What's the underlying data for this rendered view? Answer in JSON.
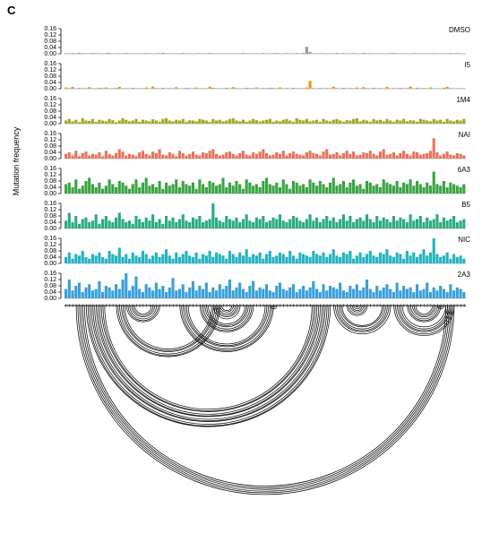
{
  "figure": {
    "panel_label": "C",
    "ylabel": "Mutation frequency"
  },
  "chart_data": {
    "type": "bar",
    "ylabel": "Mutation frequency",
    "ylim": [
      0,
      0.16
    ],
    "yticks": [
      "0.16",
      "0.12",
      "0.08",
      "0.04",
      "0.00"
    ],
    "x": {
      "count": 120,
      "start": 1,
      "step": 1
    },
    "base_color": "#9a9a9a",
    "series": [
      {
        "name": "DMSO",
        "color": "#9a9a9a",
        "values": [
          0.004,
          0.003,
          0.005,
          0.002,
          0.006,
          0.004,
          0.002,
          0.003,
          0.005,
          0.004,
          0.003,
          0.002,
          0.004,
          0.006,
          0.003,
          0.002,
          0.004,
          0.003,
          0.005,
          0.002,
          0.003,
          0.004,
          0.002,
          0.003,
          0.005,
          0.004,
          0.002,
          0.003,
          0.004,
          0.006,
          0.003,
          0.002,
          0.004,
          0.003,
          0.002,
          0.005,
          0.003,
          0.004,
          0.002,
          0.003,
          0.004,
          0.003,
          0.002,
          0.005,
          0.003,
          0.004,
          0.002,
          0.003,
          0.004,
          0.003,
          0.002,
          0.004,
          0.003,
          0.005,
          0.002,
          0.003,
          0.004,
          0.003,
          0.002,
          0.004,
          0.003,
          0.002,
          0.004,
          0.005,
          0.003,
          0.002,
          0.004,
          0.003,
          0.002,
          0.004,
          0.003,
          0.005,
          0.045,
          0.012,
          0.003,
          0.002,
          0.004,
          0.003,
          0.002,
          0.004,
          0.003,
          0.005,
          0.002,
          0.004,
          0.003,
          0.002,
          0.004,
          0.003,
          0.002,
          0.005,
          0.003,
          0.004,
          0.002,
          0.003,
          0.004,
          0.003,
          0.002,
          0.004,
          0.005,
          0.003,
          0.002,
          0.004,
          0.003,
          0.002,
          0.004,
          0.003,
          0.002,
          0.004,
          0.003,
          0.002,
          0.004,
          0.003,
          0.002,
          0.004,
          0.003,
          0.005,
          0.002,
          0.004,
          0.003,
          0.002
        ]
      },
      {
        "name": "I5",
        "color": "#e69a1e",
        "values": [
          0.008,
          0.004,
          0.012,
          0.003,
          0.006,
          0.002,
          0.004,
          0.01,
          0.003,
          0.002,
          0.006,
          0.004,
          0.008,
          0.003,
          0.002,
          0.005,
          0.012,
          0.003,
          0.004,
          0.002,
          0.006,
          0.003,
          0.004,
          0.002,
          0.008,
          0.003,
          0.014,
          0.004,
          0.002,
          0.006,
          0.003,
          0.004,
          0.002,
          0.01,
          0.003,
          0.002,
          0.006,
          0.004,
          0.003,
          0.008,
          0.002,
          0.004,
          0.003,
          0.012,
          0.006,
          0.003,
          0.004,
          0.002,
          0.006,
          0.003,
          0.01,
          0.004,
          0.002,
          0.003,
          0.006,
          0.004,
          0.003,
          0.008,
          0.002,
          0.004,
          0.003,
          0.006,
          0.004,
          0.002,
          0.008,
          0.003,
          0.004,
          0.002,
          0.006,
          0.003,
          0.004,
          0.002,
          0.008,
          0.05,
          0.004,
          0.003,
          0.006,
          0.002,
          0.004,
          0.003,
          0.012,
          0.004,
          0.002,
          0.006,
          0.003,
          0.004,
          0.002,
          0.008,
          0.003,
          0.01,
          0.004,
          0.002,
          0.006,
          0.003,
          0.004,
          0.002,
          0.012,
          0.003,
          0.004,
          0.002,
          0.006,
          0.003,
          0.004,
          0.014,
          0.002,
          0.006,
          0.003,
          0.004,
          0.002,
          0.008,
          0.003,
          0.004,
          0.002,
          0.006,
          0.012,
          0.004,
          0.003,
          0.002,
          0.004,
          0.003
        ]
      },
      {
        "name": "1M4",
        "color": "#a4a822",
        "values": [
          0.02,
          0.03,
          0.015,
          0.025,
          0.01,
          0.035,
          0.02,
          0.018,
          0.03,
          0.012,
          0.025,
          0.02,
          0.015,
          0.03,
          0.022,
          0.01,
          0.02,
          0.035,
          0.025,
          0.015,
          0.02,
          0.03,
          0.012,
          0.025,
          0.02,
          0.015,
          0.028,
          0.02,
          0.012,
          0.03,
          0.035,
          0.02,
          0.015,
          0.025,
          0.02,
          0.03,
          0.012,
          0.022,
          0.02,
          0.015,
          0.03,
          0.025,
          0.02,
          0.012,
          0.03,
          0.02,
          0.025,
          0.015,
          0.02,
          0.03,
          0.035,
          0.02,
          0.015,
          0.025,
          0.012,
          0.02,
          0.03,
          0.022,
          0.015,
          0.02,
          0.025,
          0.03,
          0.012,
          0.02,
          0.015,
          0.025,
          0.03,
          0.02,
          0.012,
          0.035,
          0.025,
          0.02,
          0.03,
          0.015,
          0.02,
          0.025,
          0.012,
          0.03,
          0.02,
          0.015,
          0.025,
          0.03,
          0.02,
          0.012,
          0.022,
          0.02,
          0.03,
          0.035,
          0.015,
          0.025,
          0.02,
          0.012,
          0.03,
          0.02,
          0.025,
          0.015,
          0.03,
          0.02,
          0.012,
          0.025,
          0.02,
          0.03,
          0.015,
          0.022,
          0.02,
          0.012,
          0.03,
          0.025,
          0.02,
          0.015,
          0.03,
          0.02,
          0.025,
          0.012,
          0.03,
          0.02,
          0.015,
          0.025,
          0.02,
          0.03
        ]
      },
      {
        "name": "NAI",
        "color": "#e8735e",
        "values": [
          0.03,
          0.04,
          0.02,
          0.05,
          0.015,
          0.035,
          0.045,
          0.02,
          0.03,
          0.025,
          0.04,
          0.015,
          0.05,
          0.03,
          0.02,
          0.035,
          0.06,
          0.045,
          0.02,
          0.03,
          0.025,
          0.015,
          0.04,
          0.05,
          0.03,
          0.02,
          0.045,
          0.035,
          0.06,
          0.025,
          0.02,
          0.04,
          0.03,
          0.015,
          0.05,
          0.035,
          0.02,
          0.03,
          0.045,
          0.025,
          0.02,
          0.04,
          0.035,
          0.05,
          0.06,
          0.03,
          0.02,
          0.025,
          0.04,
          0.045,
          0.03,
          0.02,
          0.035,
          0.05,
          0.025,
          0.02,
          0.04,
          0.03,
          0.045,
          0.06,
          0.035,
          0.02,
          0.025,
          0.04,
          0.03,
          0.05,
          0.02,
          0.035,
          0.045,
          0.03,
          0.025,
          0.02,
          0.04,
          0.05,
          0.035,
          0.03,
          0.02,
          0.045,
          0.06,
          0.025,
          0.03,
          0.04,
          0.02,
          0.035,
          0.05,
          0.03,
          0.045,
          0.02,
          0.025,
          0.04,
          0.035,
          0.05,
          0.03,
          0.02,
          0.045,
          0.06,
          0.025,
          0.03,
          0.04,
          0.02,
          0.035,
          0.05,
          0.03,
          0.02,
          0.045,
          0.04,
          0.025,
          0.03,
          0.035,
          0.05,
          0.13,
          0.04,
          0.02,
          0.03,
          0.045,
          0.025,
          0.02,
          0.035,
          0.03,
          0.02
        ]
      },
      {
        "name": "6A3",
        "color": "#3aa443",
        "values": [
          0.06,
          0.07,
          0.04,
          0.09,
          0.03,
          0.05,
          0.08,
          0.1,
          0.06,
          0.04,
          0.07,
          0.03,
          0.05,
          0.09,
          0.06,
          0.04,
          0.08,
          0.07,
          0.05,
          0.03,
          0.06,
          0.09,
          0.04,
          0.07,
          0.1,
          0.05,
          0.06,
          0.04,
          0.08,
          0.03,
          0.07,
          0.05,
          0.06,
          0.09,
          0.04,
          0.08,
          0.06,
          0.05,
          0.07,
          0.03,
          0.09,
          0.06,
          0.04,
          0.08,
          0.07,
          0.05,
          0.06,
          0.1,
          0.04,
          0.07,
          0.05,
          0.08,
          0.06,
          0.03,
          0.09,
          0.07,
          0.05,
          0.06,
          0.04,
          0.08,
          0.1,
          0.06,
          0.05,
          0.07,
          0.04,
          0.09,
          0.06,
          0.03,
          0.08,
          0.07,
          0.05,
          0.06,
          0.04,
          0.09,
          0.07,
          0.05,
          0.08,
          0.06,
          0.04,
          0.07,
          0.1,
          0.05,
          0.06,
          0.08,
          0.04,
          0.07,
          0.09,
          0.05,
          0.06,
          0.03,
          0.08,
          0.07,
          0.05,
          0.06,
          0.04,
          0.09,
          0.07,
          0.06,
          0.05,
          0.08,
          0.04,
          0.07,
          0.06,
          0.09,
          0.05,
          0.08,
          0.06,
          0.04,
          0.07,
          0.05,
          0.14,
          0.06,
          0.05,
          0.08,
          0.04,
          0.07,
          0.06,
          0.05,
          0.04,
          0.06
        ]
      },
      {
        "name": "B5",
        "color": "#2bac7c",
        "values": [
          0.05,
          0.1,
          0.04,
          0.08,
          0.03,
          0.06,
          0.07,
          0.04,
          0.05,
          0.09,
          0.03,
          0.06,
          0.08,
          0.05,
          0.04,
          0.07,
          0.1,
          0.06,
          0.04,
          0.05,
          0.03,
          0.08,
          0.06,
          0.04,
          0.07,
          0.05,
          0.09,
          0.04,
          0.06,
          0.03,
          0.08,
          0.05,
          0.07,
          0.04,
          0.06,
          0.09,
          0.05,
          0.04,
          0.07,
          0.06,
          0.08,
          0.04,
          0.05,
          0.06,
          0.16,
          0.07,
          0.05,
          0.04,
          0.08,
          0.06,
          0.05,
          0.07,
          0.04,
          0.06,
          0.09,
          0.05,
          0.04,
          0.07,
          0.06,
          0.08,
          0.04,
          0.05,
          0.07,
          0.06,
          0.09,
          0.05,
          0.04,
          0.06,
          0.08,
          0.07,
          0.05,
          0.04,
          0.06,
          0.09,
          0.05,
          0.07,
          0.04,
          0.06,
          0.08,
          0.05,
          0.07,
          0.04,
          0.06,
          0.09,
          0.05,
          0.08,
          0.04,
          0.06,
          0.07,
          0.05,
          0.09,
          0.06,
          0.04,
          0.08,
          0.05,
          0.07,
          0.06,
          0.04,
          0.08,
          0.05,
          0.07,
          0.06,
          0.04,
          0.09,
          0.05,
          0.06,
          0.08,
          0.04,
          0.07,
          0.05,
          0.06,
          0.09,
          0.04,
          0.07,
          0.05,
          0.06,
          0.08,
          0.04,
          0.05,
          0.06
        ]
      },
      {
        "name": "NIC",
        "color": "#23b4c0",
        "values": [
          0.04,
          0.07,
          0.03,
          0.06,
          0.05,
          0.08,
          0.04,
          0.03,
          0.06,
          0.05,
          0.07,
          0.04,
          0.03,
          0.08,
          0.06,
          0.05,
          0.1,
          0.04,
          0.06,
          0.03,
          0.07,
          0.05,
          0.04,
          0.08,
          0.06,
          0.03,
          0.05,
          0.07,
          0.04,
          0.06,
          0.09,
          0.05,
          0.03,
          0.07,
          0.04,
          0.06,
          0.08,
          0.05,
          0.04,
          0.07,
          0.03,
          0.06,
          0.05,
          0.08,
          0.04,
          0.07,
          0.06,
          0.05,
          0.03,
          0.08,
          0.06,
          0.04,
          0.07,
          0.05,
          0.09,
          0.04,
          0.06,
          0.05,
          0.07,
          0.03,
          0.06,
          0.08,
          0.04,
          0.05,
          0.07,
          0.06,
          0.04,
          0.08,
          0.05,
          0.03,
          0.07,
          0.06,
          0.05,
          0.04,
          0.08,
          0.06,
          0.05,
          0.07,
          0.04,
          0.06,
          0.09,
          0.05,
          0.04,
          0.07,
          0.06,
          0.08,
          0.03,
          0.05,
          0.07,
          0.04,
          0.06,
          0.08,
          0.05,
          0.04,
          0.07,
          0.06,
          0.09,
          0.05,
          0.04,
          0.07,
          0.06,
          0.03,
          0.08,
          0.05,
          0.07,
          0.04,
          0.06,
          0.09,
          0.05,
          0.07,
          0.16,
          0.06,
          0.04,
          0.05,
          0.07,
          0.03,
          0.06,
          0.04,
          0.05,
          0.03
        ]
      },
      {
        "name": "2A3",
        "color": "#3a9fd8",
        "values": [
          0.06,
          0.12,
          0.05,
          0.08,
          0.1,
          0.04,
          0.07,
          0.09,
          0.05,
          0.06,
          0.11,
          0.04,
          0.08,
          0.07,
          0.05,
          0.09,
          0.06,
          0.12,
          0.17,
          0.05,
          0.08,
          0.14,
          0.06,
          0.04,
          0.09,
          0.07,
          0.05,
          0.1,
          0.06,
          0.08,
          0.04,
          0.07,
          0.13,
          0.05,
          0.06,
          0.09,
          0.04,
          0.07,
          0.11,
          0.05,
          0.08,
          0.06,
          0.1,
          0.04,
          0.07,
          0.05,
          0.09,
          0.06,
          0.08,
          0.12,
          0.05,
          0.07,
          0.1,
          0.06,
          0.04,
          0.08,
          0.11,
          0.05,
          0.07,
          0.06,
          0.09,
          0.05,
          0.04,
          0.08,
          0.1,
          0.06,
          0.05,
          0.07,
          0.09,
          0.04,
          0.06,
          0.08,
          0.05,
          0.07,
          0.11,
          0.06,
          0.04,
          0.09,
          0.05,
          0.08,
          0.07,
          0.06,
          0.1,
          0.05,
          0.04,
          0.08,
          0.06,
          0.09,
          0.05,
          0.07,
          0.12,
          0.06,
          0.04,
          0.08,
          0.05,
          0.07,
          0.09,
          0.06,
          0.04,
          0.1,
          0.05,
          0.08,
          0.06,
          0.07,
          0.04,
          0.09,
          0.05,
          0.06,
          0.1,
          0.04,
          0.07,
          0.05,
          0.08,
          0.06,
          0.04,
          0.09,
          0.05,
          0.07,
          0.06,
          0.04
        ]
      }
    ],
    "arcs": {
      "nested_count": 6,
      "helices": [
        {
          "i": 3,
          "j": 116
        },
        {
          "i": 6,
          "j": 79
        },
        {
          "i": 9,
          "j": 76
        },
        {
          "i": 15,
          "j": 46
        },
        {
          "i": 18,
          "j": 28
        },
        {
          "i": 34,
          "j": 62
        },
        {
          "i": 40,
          "j": 56
        },
        {
          "i": 44,
          "j": 52
        },
        {
          "i": 61,
          "j": 63
        },
        {
          "i": 80,
          "j": 97
        },
        {
          "i": 84,
          "j": 90
        },
        {
          "i": 98,
          "j": 116
        },
        {
          "i": 102,
          "j": 112
        },
        {
          "i": 111,
          "j": 113
        }
      ]
    }
  }
}
